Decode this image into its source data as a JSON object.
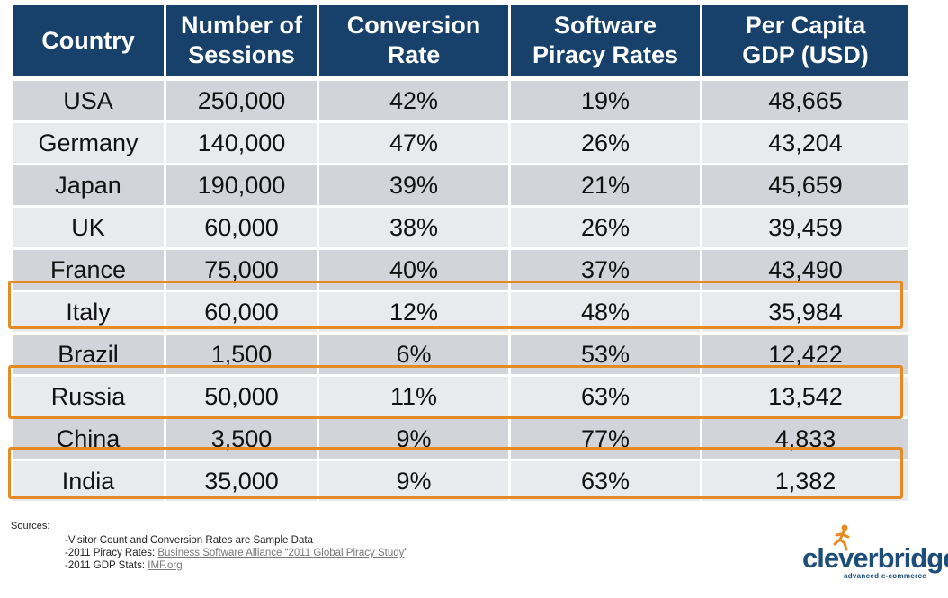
{
  "table": {
    "headers": [
      "Country",
      "Number of Sessions",
      "Conversion Rate",
      "Software Piracy Rates",
      "Per Capita GDP (USD)"
    ],
    "header_lines": [
      [
        "Country",
        ""
      ],
      [
        "Number of",
        "Sessions"
      ],
      [
        "Conversion",
        "Rate"
      ],
      [
        "Software",
        "Piracy Rates"
      ],
      [
        "Per Capita",
        "GDP (USD)"
      ]
    ],
    "rows": [
      [
        "USA",
        "250,000",
        "42%",
        "19%",
        "48,665"
      ],
      [
        "Germany",
        "140,000",
        "47%",
        "26%",
        "43,204"
      ],
      [
        "Japan",
        "190,000",
        "39%",
        "21%",
        "45,659"
      ],
      [
        "UK",
        "60,000",
        "38%",
        "26%",
        "39,459"
      ],
      [
        "France",
        "75,000",
        "40%",
        "37%",
        "43,490"
      ],
      [
        "Italy",
        "60,000",
        "12%",
        "48%",
        "35,984"
      ],
      [
        "Brazil",
        "1,500",
        "6%",
        "53%",
        "12,422"
      ],
      [
        "Russia",
        "50,000",
        "11%",
        "63%",
        "13,542"
      ],
      [
        "China",
        "3,500",
        "9%",
        "77%",
        "4,833"
      ],
      [
        "India",
        "35,000",
        "9%",
        "63%",
        "1,382"
      ]
    ],
    "highlighted_rows": [
      "Italy",
      "Russia",
      "India"
    ],
    "colors": {
      "header_bg": "#17406a",
      "row_dark": "#d2d4d9",
      "row_light": "#e9eaed",
      "highlight": "#e68a23"
    }
  },
  "sources": {
    "title": "Sources:",
    "line1": "-Visitor Count and Conversion Rates are Sample Data",
    "line2_prefix": "-2011 Piracy Rates: ",
    "line2_link": "Business Software Alliance “2011 Global Piracy Study",
    "line2_suffix": "”",
    "line3_prefix": "-2011 GDP Stats: ",
    "line3_link": "IMF.org"
  },
  "logo": {
    "text": "cleverbridge",
    "tagline": "advanced e-commerce"
  }
}
